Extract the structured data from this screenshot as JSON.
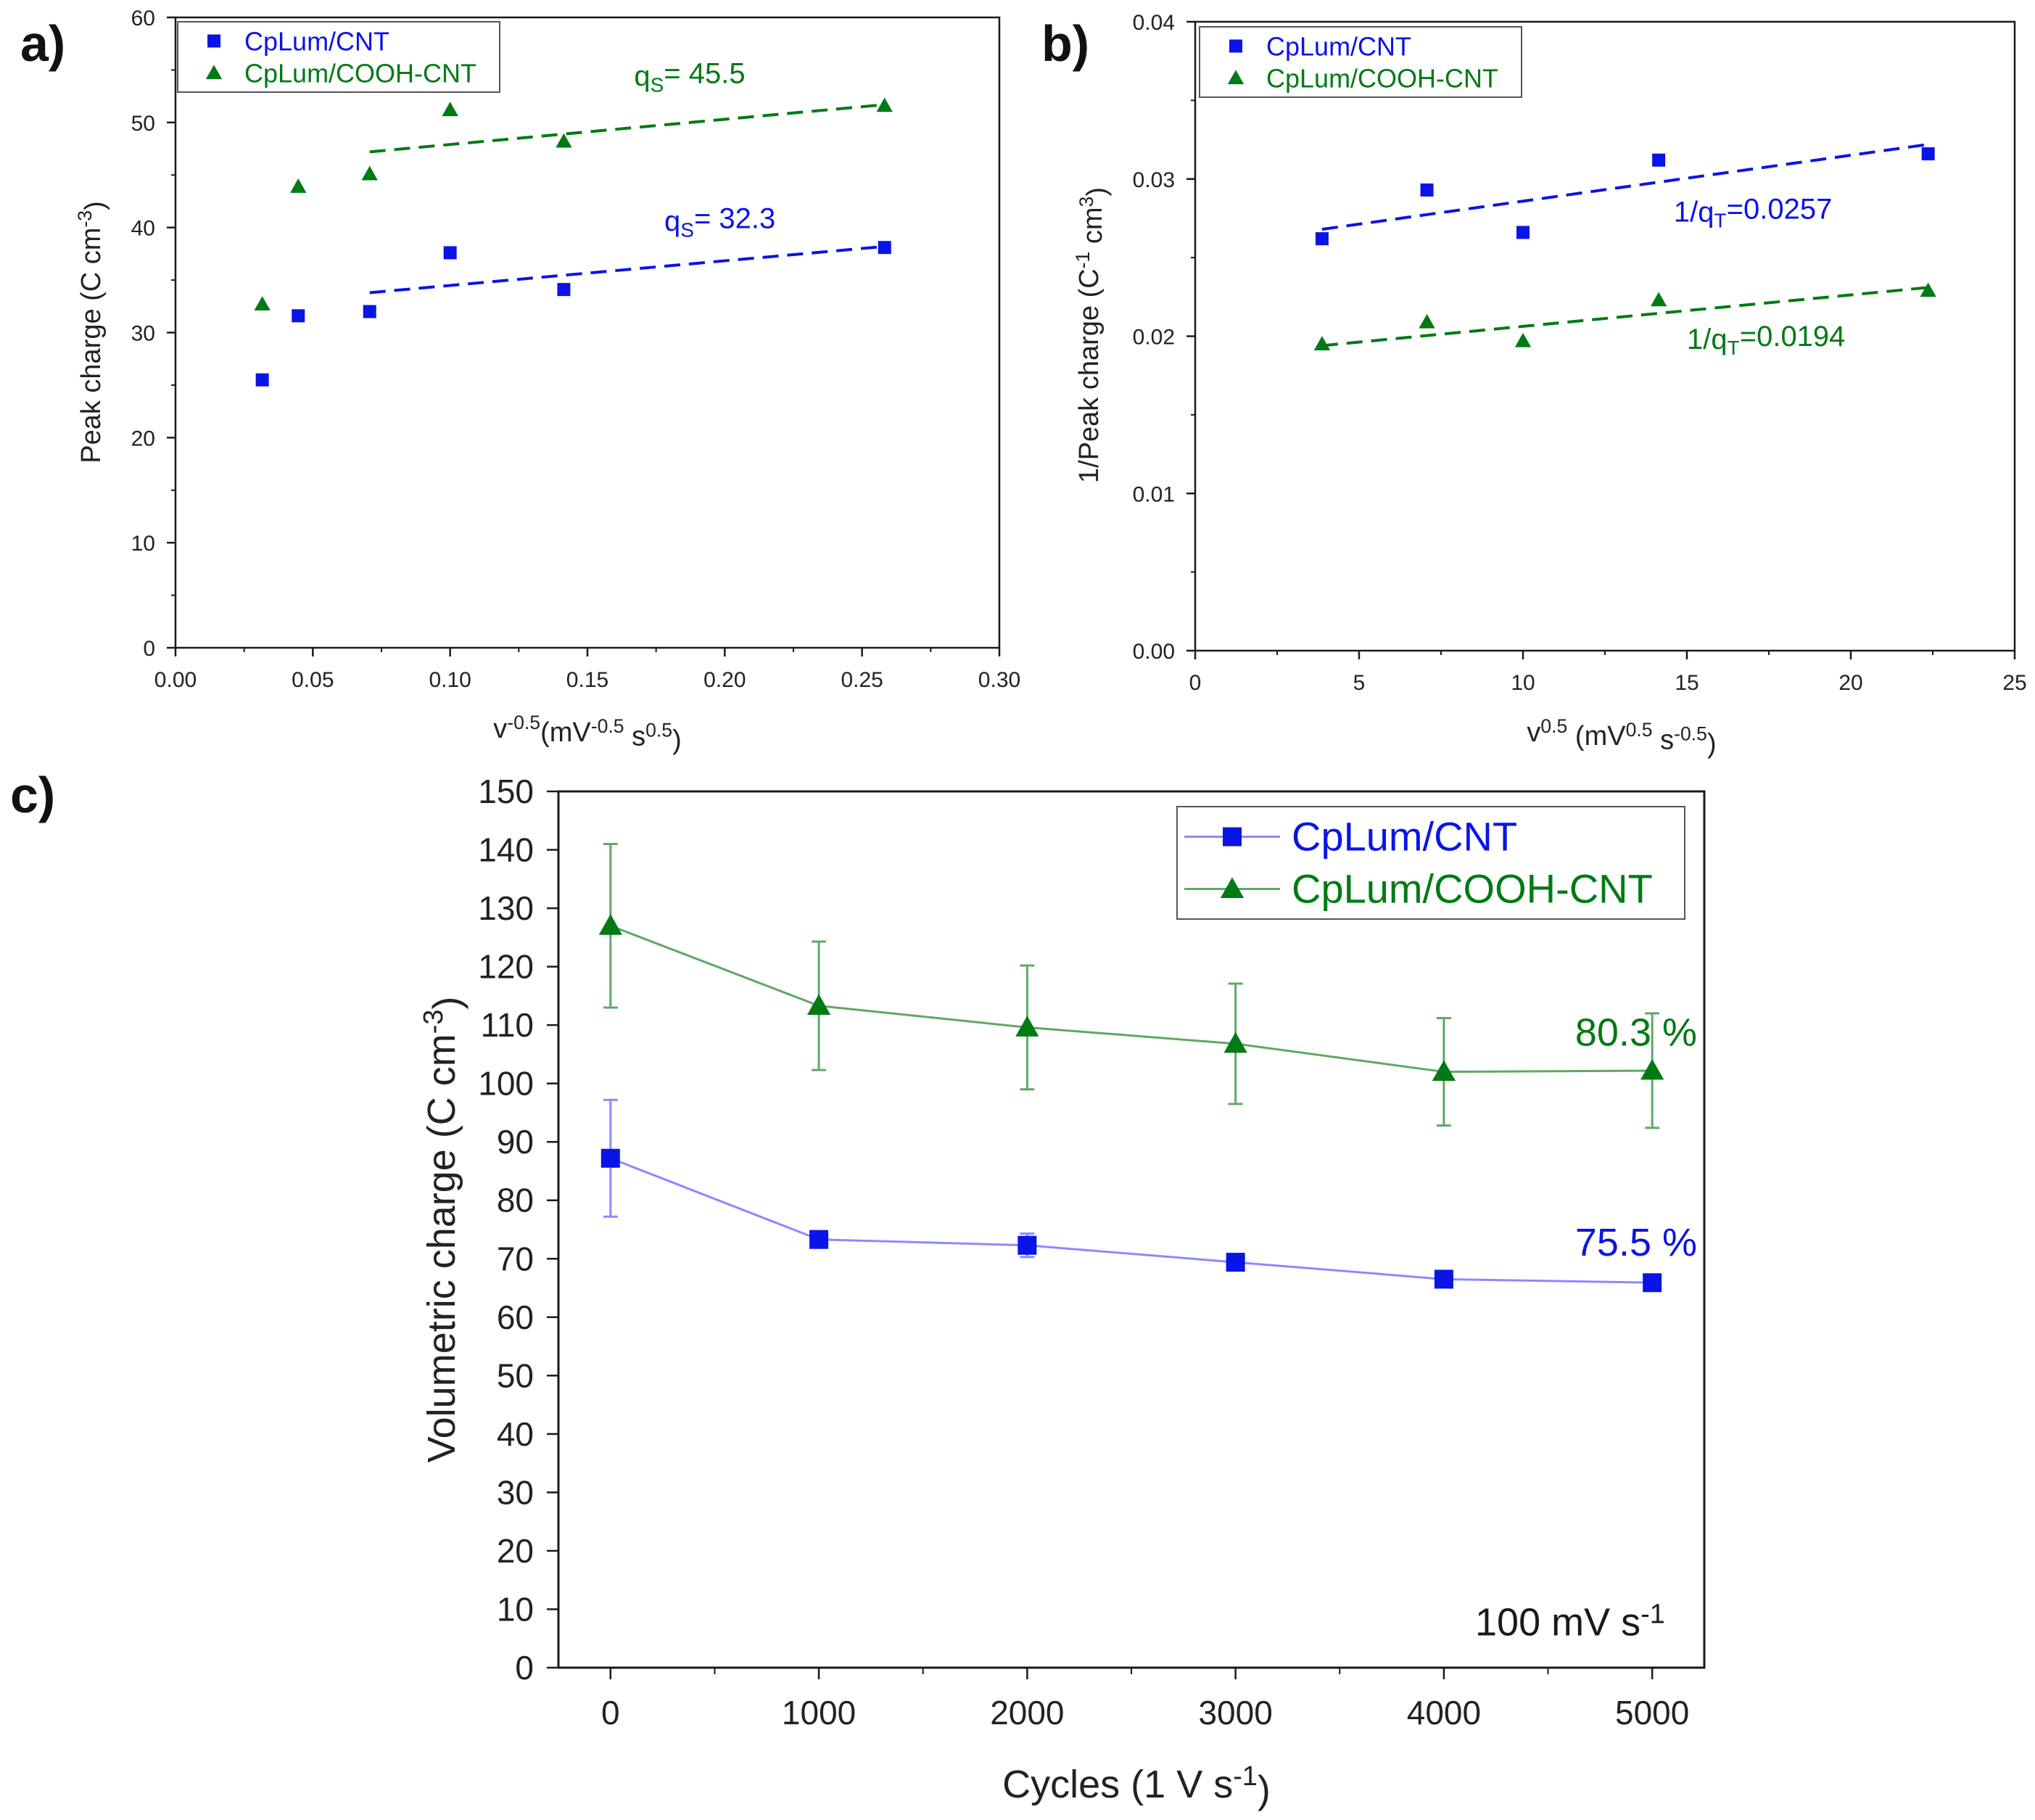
{
  "colors": {
    "blue": "#0a14e6",
    "green": "#007a14",
    "blue_line": "#8a8aff",
    "green_line": "#5fa865",
    "axis": "#1a1a1a"
  },
  "chart_data": [
    {
      "id": "a",
      "type": "scatter",
      "panel_label": "a)",
      "xlabel_parts": [
        "v",
        "-0.5",
        "(mV",
        "-0.5",
        " s",
        "0.5",
        ")"
      ],
      "ylabel_parts": [
        "Peak charge (C cm",
        "-3",
        ")"
      ],
      "xlim": [
        0,
        0.3
      ],
      "ylim": [
        0,
        60
      ],
      "xticks": [
        0,
        0.05,
        0.1,
        0.15,
        0.2,
        0.25,
        0.3
      ],
      "xtick_labels": [
        "0.00",
        "0.05",
        "0.10",
        "0.15",
        "0.20",
        "0.25",
        "0.30"
      ],
      "yticks": [
        0,
        10,
        20,
        30,
        40,
        50,
        60
      ],
      "ytick_labels": [
        "0",
        "10",
        "20",
        "30",
        "40",
        "50",
        "60"
      ],
      "series": [
        {
          "name": "CpLum/CNT",
          "color_key": "blue",
          "marker": "square",
          "x": [
            0.0316,
            0.0447,
            0.0707,
            0.1,
            0.1414,
            0.2582
          ],
          "y": [
            25.5,
            31.6,
            32.0,
            37.6,
            34.1,
            38.1
          ],
          "fit": {
            "x": [
              0.0707,
              0.2582
            ],
            "y": [
              33.8,
              38.2
            ]
          }
        },
        {
          "name": "CpLum/COOH-CNT",
          "color_key": "green",
          "marker": "triangle",
          "x": [
            0.0316,
            0.0447,
            0.0707,
            0.1,
            0.1414,
            0.2582
          ],
          "y": [
            32.7,
            43.9,
            45.1,
            51.2,
            48.2,
            51.6
          ],
          "fit": {
            "x": [
              0.0707,
              0.2582
            ],
            "y": [
              47.2,
              51.7
            ]
          }
        }
      ],
      "annotations": [
        {
          "parts": [
            "q",
            "S",
            "= 45.5"
          ],
          "color_key": "green",
          "x": 0.167,
          "y": 53.5
        },
        {
          "parts": [
            "q",
            "S",
            "= 32.3"
          ],
          "color_key": "blue",
          "x": 0.178,
          "y": 39.7
        }
      ],
      "legend_location": "top-left"
    },
    {
      "id": "b",
      "type": "scatter",
      "panel_label": "b)",
      "xlabel_parts": [
        "v",
        "0.5",
        " (mV",
        "0.5",
        " s",
        "-0.5",
        ")"
      ],
      "ylabel_parts": [
        "1/Peak charge (C",
        "-1",
        " cm",
        "3",
        ")"
      ],
      "xlim": [
        0,
        25
      ],
      "ylim": [
        0,
        0.04
      ],
      "xticks": [
        0,
        5,
        10,
        15,
        20,
        25
      ],
      "xtick_labels": [
        "0",
        "5",
        "10",
        "15",
        "20",
        "25"
      ],
      "yticks": [
        0,
        0.01,
        0.02,
        0.03,
        0.04
      ],
      "ytick_labels": [
        "0.00",
        "0.01",
        "0.02",
        "0.03",
        "0.04"
      ],
      "series": [
        {
          "name": "CpLum/CNT",
          "color_key": "blue",
          "marker": "square",
          "x": [
            3.87,
            7.07,
            10.0,
            14.14,
            22.36
          ],
          "y": [
            0.0262,
            0.0293,
            0.0266,
            0.0312,
            0.0316
          ],
          "fit": {
            "x": [
              3.87,
              22.36
            ],
            "y": [
              0.0268,
              0.0322
            ]
          }
        },
        {
          "name": "CpLum/COOH-CNT",
          "color_key": "green",
          "marker": "triangle",
          "x": [
            3.87,
            7.07,
            10.0,
            14.14,
            22.36
          ],
          "y": [
            0.0195,
            0.0209,
            0.0197,
            0.0223,
            0.0229
          ],
          "fit": {
            "x": [
              3.87,
              22.36
            ],
            "y": [
              0.0194,
              0.0231
            ]
          }
        }
      ],
      "annotations": [
        {
          "parts": [
            "1/q",
            "T",
            "=0.0257"
          ],
          "color_key": "blue",
          "x": 14.6,
          "y": 0.0273
        },
        {
          "parts": [
            "1/q",
            "T",
            "=0.0194"
          ],
          "color_key": "green",
          "x": 15.0,
          "y": 0.0192
        }
      ],
      "legend_location": "top-left"
    },
    {
      "id": "c",
      "type": "line",
      "panel_label": "c)",
      "xlabel_parts": [
        "Cycles (1 V s",
        "-1",
        ")"
      ],
      "ylabel_parts": [
        "Volumetric charge (C cm",
        "-3",
        ")"
      ],
      "xlim": [
        -250,
        5250
      ],
      "ylim": [
        0,
        150
      ],
      "xticks": [
        0,
        1000,
        2000,
        3000,
        4000,
        5000
      ],
      "xtick_labels": [
        "0",
        "1000",
        "2000",
        "3000",
        "4000",
        "5000"
      ],
      "minor_xticks": [
        500,
        1500,
        2500,
        3500,
        4500
      ],
      "yticks": [
        0,
        10,
        20,
        30,
        40,
        50,
        60,
        70,
        80,
        90,
        100,
        110,
        120,
        130,
        140,
        150
      ],
      "ytick_labels": [
        "0",
        "10",
        "20",
        "30",
        "40",
        "50",
        "60",
        "70",
        "80",
        "90",
        "100",
        "110",
        "120",
        "130",
        "140",
        "150"
      ],
      "series": [
        {
          "name": "CpLum/CNT",
          "color_key": "blue",
          "line_key": "blue_line",
          "marker": "square",
          "x": [
            0,
            1000,
            2000,
            3000,
            4000,
            5000
          ],
          "y": [
            87.2,
            73.3,
            72.3,
            69.4,
            66.5,
            65.9
          ],
          "err": [
            10.0,
            1.0,
            2.0,
            1.0,
            0.8,
            0.8
          ]
        },
        {
          "name": "CpLum/COOH-CNT",
          "color_key": "green",
          "line_key": "green_line",
          "marker": "triangle",
          "x": [
            0,
            1000,
            2000,
            3000,
            4000,
            5000
          ],
          "y": [
            127.0,
            113.3,
            109.6,
            106.8,
            102.0,
            102.2
          ],
          "err": [
            14.0,
            11.0,
            10.6,
            10.3,
            9.2,
            9.8
          ]
        }
      ],
      "annotations": [
        {
          "parts": [
            "80.3 %"
          ],
          "color_key": "green",
          "x": 4630,
          "y": 106.5
        },
        {
          "parts": [
            "75.5 %"
          ],
          "color_key": "blue",
          "x": 4630,
          "y": 70.5
        },
        {
          "parts": [
            "100 mV s",
            "-1"
          ],
          "color_key": "axis",
          "x": 4150,
          "y": 5.5
        }
      ],
      "legend_location": "top-right"
    }
  ]
}
